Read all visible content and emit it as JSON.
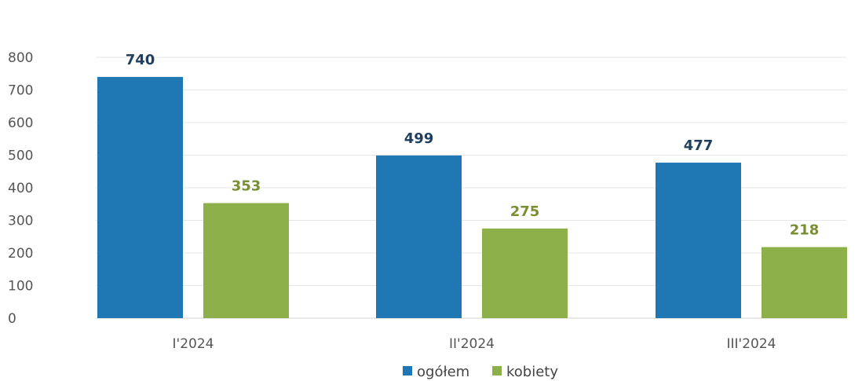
{
  "chart_data": {
    "type": "bar",
    "categories": [
      "I'2024",
      "II'2024",
      "III'2024"
    ],
    "series": [
      {
        "name": "ogółem",
        "values": [
          740,
          499,
          477
        ],
        "color": "#1f77b4",
        "label_color": "#1f3f5f"
      },
      {
        "name": "kobiety",
        "values": [
          353,
          275,
          218
        ],
        "color": "#8db04a",
        "label_color": "#7a8f32"
      }
    ],
    "ylim": [
      0,
      800
    ],
    "yticks": [
      "0",
      "100",
      "200",
      "300",
      "400",
      "500",
      "600",
      "700",
      "800"
    ],
    "grid": true,
    "legend": "bottom-center"
  }
}
